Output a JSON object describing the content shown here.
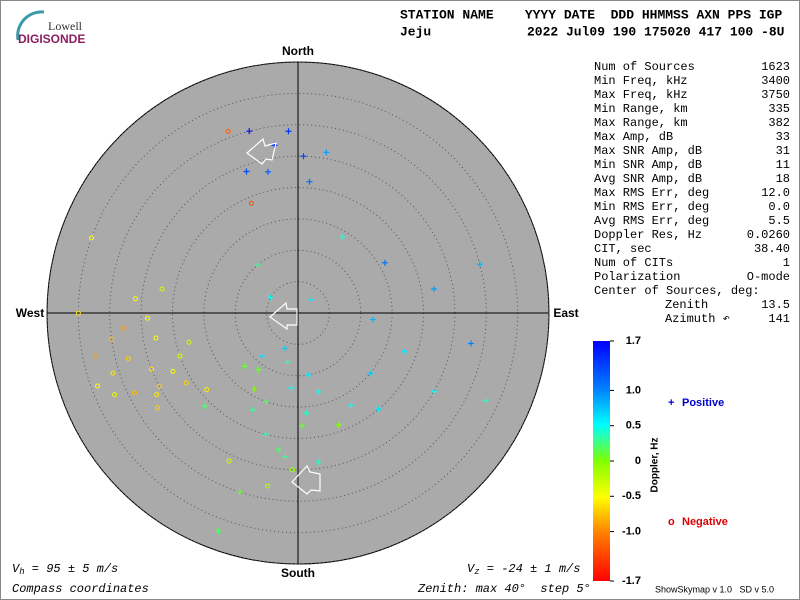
{
  "chart_data": {
    "type": "skymap",
    "logo": {
      "line1": "Lowell",
      "line2": "DIGISONDE"
    },
    "header": {
      "labels": "STATION NAME    YYYY DATE  DDD HHMMSS AXN PPS IGP",
      "station": "Jeju",
      "values": "2022 Jul09 190 175020 417 100 -8U"
    },
    "compass": {
      "north": "North",
      "south": "South",
      "west": "West",
      "east": "East"
    },
    "rlim": [
      0,
      40
    ],
    "rticks": [
      5,
      10,
      15,
      20,
      25,
      30,
      35,
      40
    ],
    "stats": [
      [
        "Num of Sources",
        "1623"
      ],
      [
        "Min Freq, kHz",
        "3400"
      ],
      [
        "Max Freq, kHz",
        "3750"
      ],
      [
        "Min Range, km",
        "335"
      ],
      [
        "Max Range, km",
        "382"
      ],
      [
        "Max Amp, dB",
        "33"
      ],
      [
        "Max SNR Amp, dB",
        "31"
      ],
      [
        "Min SNR Amp, dB",
        "11"
      ],
      [
        "Avg SNR Amp, dB",
        "18"
      ],
      [
        "Max RMS Err, deg",
        "12.0"
      ],
      [
        "Min RMS Err, deg",
        "0.0"
      ],
      [
        "Avg RMS Err, deg",
        "5.5"
      ],
      [
        "Doppler Res, Hz",
        "0.0260"
      ],
      [
        "CIT, sec",
        "38.40"
      ],
      [
        "Num of CITs",
        "1"
      ],
      [
        "Polarization",
        "O-mode"
      ],
      [
        "Center of Sources, deg:",
        ""
      ]
    ],
    "center": [
      [
        "Zenith",
        "13.5"
      ],
      [
        "Azimuth ↶",
        "141"
      ]
    ],
    "colorbar": {
      "label": "Doppler, Hz",
      "lim": [
        -1.7,
        1.7
      ],
      "ticks": [
        1.7,
        {
          "value": 1,
          "label": "1.0"
        },
        0.5,
        0,
        -0.5,
        {
          "value": -1,
          "label": "-1.0"
        },
        -1.7
      ]
    },
    "legend": {
      "positive": {
        "marker": "+",
        "label": "Positive",
        "color": "#0000cc"
      },
      "negative": {
        "marker": "o",
        "label": "Negative",
        "color": "#dd0000"
      }
    },
    "footer": {
      "vh": {
        "symbol": "V",
        "subscript": "h",
        "text": " = 95 ± 5 m/s"
      },
      "vz": {
        "symbol": "V",
        "subscript": "z",
        "text": " = -24 ± 1 m/s"
      },
      "coords": "Compass coordinates",
      "zenith": "Zenith: max 40°  step 5°",
      "version": "ShowSkymap v 1.0   SD v 5.0"
    },
    "points": {
      "zenith": [
        27,
        29,
        25,
        23,
        30,
        21,
        24,
        26,
        19,
        31,
        25,
        28,
        22,
        30,
        33,
        26,
        20,
        24,
        27,
        35,
        18,
        29,
        31,
        23,
        21,
        32,
        26,
        19,
        28,
        34,
        22,
        25,
        8,
        12,
        15,
        18,
        20,
        14,
        10,
        22,
        25,
        17,
        11,
        13,
        28,
        30,
        16,
        9,
        19,
        23,
        26,
        6,
        21,
        24,
        12,
        18,
        22,
        25,
        15,
        28,
        20,
        30,
        33,
        16,
        5,
        10,
        3,
        14,
        35,
        37,
        12,
        17
      ],
      "azimuth": [
        352,
        357,
        2,
        348,
        345,
        5,
        340,
        10,
        337,
        339,
        249,
        255,
        245,
        262,
        258,
        240,
        250,
        268,
        236,
        270,
        255,
        244,
        252,
        260,
        238,
        246,
        275,
        230,
        265,
        250,
        280,
        242,
        192,
        185,
        200,
        178,
        195,
        210,
        170,
        188,
        182,
        205,
        215,
        165,
        190,
        198,
        175,
        220,
        160,
        185,
        205,
        200,
        225,
        172,
        95,
        110,
        80,
        120,
        130,
        100,
        140,
        75,
        115,
        60,
        300,
        320,
        45,
        30,
        290,
        200,
        225,
        150
      ],
      "doppler": [
        1.5,
        1.4,
        1.3,
        1.2,
        1.6,
        1.1,
        1.3,
        0.9,
        -1.3,
        -1.2,
        -0.6,
        -0.7,
        -0.5,
        -0.8,
        -0.9,
        -0.6,
        -0.4,
        -0.5,
        -0.7,
        -0.6,
        -0.3,
        -0.8,
        -0.6,
        -0.5,
        -0.7,
        -0.4,
        -0.5,
        -0.6,
        -0.9,
        -0.5,
        -0.3,
        -0.7,
        0.3,
        0.5,
        0.2,
        0.1,
        0.4,
        0,
        0.6,
        0.2,
        -0.1,
        0.3,
        0.1,
        0.5,
        -0.2,
        0.1,
        0.4,
        0.6,
        0,
        0.3,
        -0.3,
        0.7,
        0.2,
        0.4,
        0.8,
        0.6,
        0.9,
        0.5,
        0.7,
        1,
        0.6,
        0.8,
        0.4,
        1.1,
        0.5,
        0.3,
        0.6,
        0.4,
        -0.5,
        0.2,
        0.1,
        0.5
      ]
    }
  }
}
